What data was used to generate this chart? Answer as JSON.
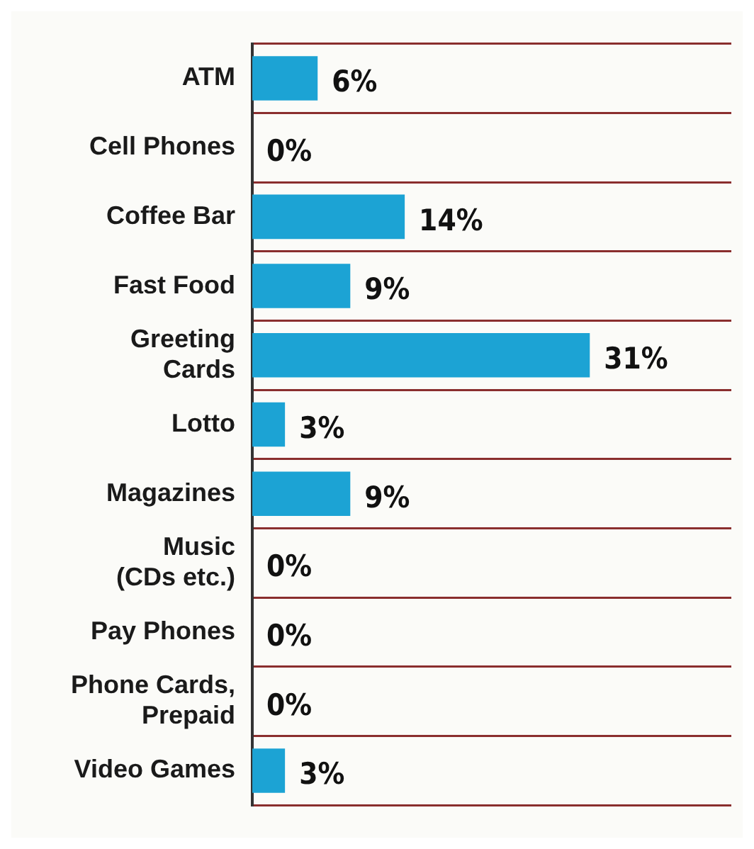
{
  "chart_data": {
    "type": "bar",
    "orientation": "horizontal",
    "categories": [
      "ATM",
      "Cell Phones",
      "Coffee Bar",
      "Fast Food",
      "Greeting Cards",
      "Lotto",
      "Magazines",
      "Music (CDs etc.)",
      "Pay Phones",
      "Phone Cards, Prepaid",
      "Video Games"
    ],
    "values": [
      6,
      0,
      14,
      9,
      31,
      3,
      9,
      0,
      0,
      0,
      3
    ],
    "value_labels": [
      "6%",
      "0%",
      "14%",
      "9%",
      "31%",
      "3%",
      "9%",
      "0%",
      "0%",
      "0%",
      "3%"
    ],
    "color": "#1ca3d4",
    "xlim": [
      0,
      44
    ],
    "grid": "y",
    "tick_labels": "y",
    "legend": false
  }
}
